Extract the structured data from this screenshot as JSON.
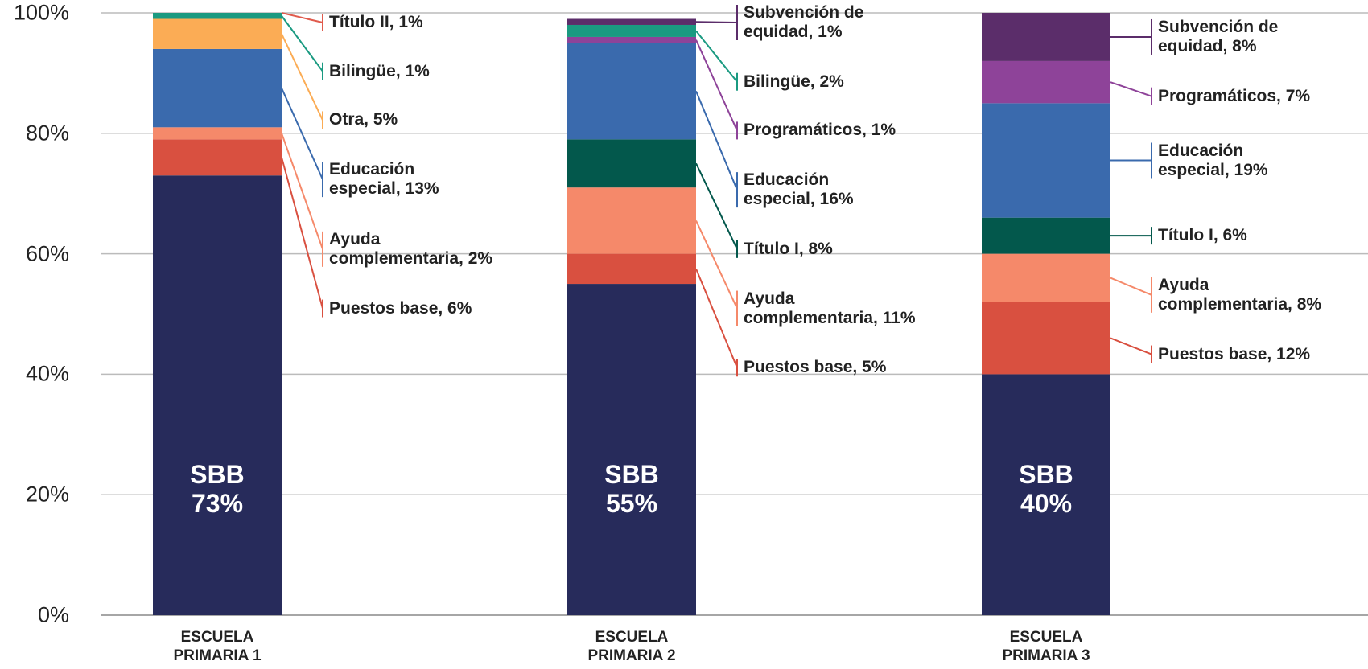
{
  "chart_data": {
    "type": "stacked_bar",
    "categories": [
      "ESCUELA\nPRIMARIA 1",
      "ESCUELA\nPRIMARIA 2",
      "ESCUELA\nPRIMARIA 3"
    ],
    "ylim": [
      0,
      100
    ],
    "yticks": [
      {
        "value": 0,
        "label": "0%"
      },
      {
        "value": 20,
        "label": "20%"
      },
      {
        "value": 40,
        "label": "40%"
      },
      {
        "value": 60,
        "label": "60%"
      },
      {
        "value": 80,
        "label": "80%"
      },
      {
        "value": 100,
        "label": "100%"
      }
    ],
    "grid": true,
    "series": [
      {
        "color": "#272b5b",
        "values": [
          73,
          55,
          40
        ],
        "value_labels": [
          "SBB\n73%",
          "SBB\n55%",
          "SBB\n40%"
        ]
      },
      {
        "color": "#d95040",
        "values": [
          6,
          5,
          12
        ],
        "value_labels": [
          "Puestos base, 6%",
          "Puestos base, 5%",
          "Puestos base, 12%"
        ]
      },
      {
        "color": "#f5896a",
        "values": [
          2,
          11,
          8
        ],
        "value_labels": [
          "Ayuda\ncomplementaria, 2%",
          "Ayuda\ncomplementaria, 11%",
          "Ayuda\ncomplementaria, 8%"
        ]
      },
      {
        "color": "#03584c",
        "values": [
          null,
          8,
          6
        ],
        "value_labels": [
          null,
          "Título I, 8%",
          "Título I, 6%"
        ]
      },
      {
        "color": "#3a6aad",
        "values": [
          13,
          16,
          19
        ],
        "value_labels": [
          "Educación\nespecial, 13%",
          "Educación\nespecial, 16%",
          "Educación\nespecial, 19%"
        ]
      },
      {
        "color": "#8e4399",
        "values": [
          null,
          1,
          7
        ],
        "value_labels": [
          null,
          "Programáticos, 1%",
          "Programáticos, 7%"
        ]
      },
      {
        "color": "#fbac55",
        "values": [
          5,
          null,
          null
        ],
        "value_labels": [
          "Otra, 5%",
          null,
          null
        ]
      },
      {
        "color": "#1a9a81",
        "values": [
          1,
          2,
          null
        ],
        "value_labels": [
          "Bilingüe, 1%",
          "Bilingüe, 2%",
          null
        ]
      },
      {
        "color": "#e05a4c",
        "values": [
          1,
          null,
          null
        ],
        "value_labels": [
          "Título II, 1%",
          null,
          null
        ]
      },
      {
        "color": "#5b2d6a",
        "values": [
          null,
          1,
          8
        ],
        "value_labels": [
          null,
          "Subvención de\nequidad, 1%",
          "Subvención de\nequidad, 8%"
        ]
      }
    ]
  }
}
